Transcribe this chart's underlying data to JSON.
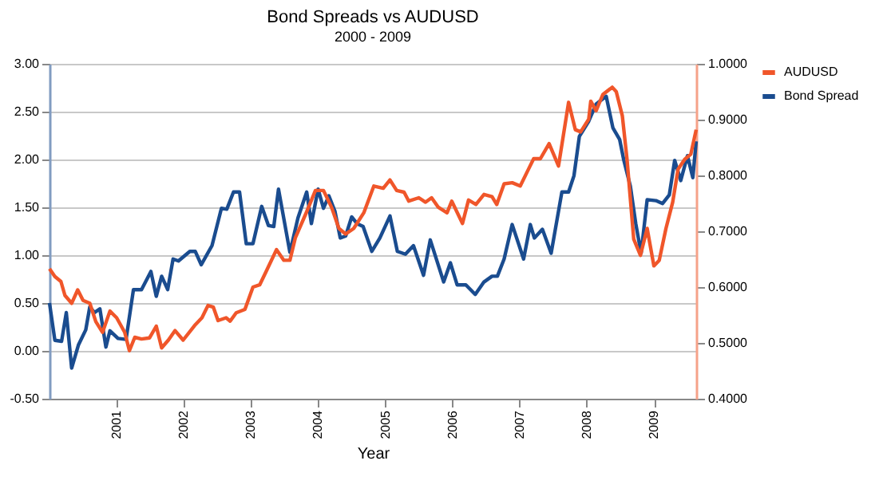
{
  "chart_data": {
    "type": "line",
    "title": "Bond Spreads vs AUDUSD",
    "subtitle": "2000 - 2009",
    "xlabel": "Year",
    "xlim": [
      2000,
      2009.63
    ],
    "xticks": [
      2001,
      2002,
      2003,
      2004,
      2005,
      2006,
      2007,
      2008,
      2009
    ],
    "ylim": [
      -0.5,
      3.0
    ],
    "yticks": [
      {
        "value": -0.5,
        "label": "-0.50"
      },
      {
        "value": 0,
        "label": "0.00"
      },
      {
        "value": 0.5,
        "label": "0.50"
      },
      {
        "value": 1,
        "label": "1.00"
      },
      {
        "value": 1.5,
        "label": "1.50"
      },
      {
        "value": 2,
        "label": "2.00"
      },
      {
        "value": 2.5,
        "label": "2.50"
      },
      {
        "value": 3,
        "label": "3.00"
      }
    ],
    "y2lim": [
      0.4,
      1.0
    ],
    "y2ticks": [
      {
        "value": 0.4,
        "label": "0.4000"
      },
      {
        "value": 0.5,
        "label": "0.5000"
      },
      {
        "value": 0.6,
        "label": "0.6000"
      },
      {
        "value": 0.7,
        "label": "0.7000"
      },
      {
        "value": 0.8,
        "label": "0.8000"
      },
      {
        "value": 0.9,
        "label": "0.9000"
      },
      {
        "value": 1.0,
        "label": "1.0000"
      }
    ],
    "grid": "y",
    "legend": "right",
    "marker": "none",
    "line_style": "solid",
    "series": [
      {
        "name": "AUDUSD",
        "color": "#f0562a",
        "axis": "y2",
        "x": [
          2000,
          2000.08,
          2000.17,
          2000.23,
          2000.33,
          2000.42,
          2000.5,
          2000.6,
          2000.69,
          2000.79,
          2000.9,
          2001,
          2001.12,
          2001.19,
          2001.27,
          2001.37,
          2001.49,
          2001.59,
          2001.67,
          2001.77,
          2001.87,
          2001.99,
          2002.16,
          2002.27,
          2002.36,
          2002.44,
          2002.51,
          2002.63,
          2002.69,
          2002.78,
          2002.91,
          2003.03,
          2003.13,
          2003.23,
          2003.38,
          2003.49,
          2003.58,
          2003.66,
          2003.83,
          2003.96,
          2004.08,
          2004.2,
          2004.31,
          2004.41,
          2004.53,
          2004.68,
          2004.83,
          2004.97,
          2005.07,
          2005.17,
          2005.28,
          2005.35,
          2005.5,
          2005.6,
          2005.69,
          2005.79,
          2005.92,
          2005.99,
          2006.15,
          2006.24,
          2006.35,
          2006.47,
          2006.59,
          2006.66,
          2006.77,
          2006.89,
          2007.01,
          2007.12,
          2007.21,
          2007.31,
          2007.44,
          2007.58,
          2007.73,
          2007.83,
          2007.91,
          2008.03,
          2008.06,
          2008.14,
          2008.24,
          2008.38,
          2008.44,
          2008.53,
          2008.6,
          2008.7,
          2008.8,
          2008.9,
          2009,
          2009.08,
          2009.18,
          2009.28,
          2009.36,
          2009.46,
          2009.55,
          2009.63
        ],
        "values": [
          0.633,
          0.619,
          0.61,
          0.585,
          0.571,
          0.595,
          0.576,
          0.571,
          0.538,
          0.519,
          0.557,
          0.545,
          0.519,
          0.486,
          0.51,
          0.507,
          0.509,
          0.53,
          0.491,
          0.505,
          0.522,
          0.505,
          0.531,
          0.545,
          0.567,
          0.564,
          0.54,
          0.545,
          0.539,
          0.554,
          0.56,
          0.6,
          0.604,
          0.629,
          0.667,
          0.648,
          0.648,
          0.688,
          0.735,
          0.773,
          0.773,
          0.743,
          0.705,
          0.695,
          0.705,
          0.733,
          0.781,
          0.777,
          0.792,
          0.773,
          0.77,
          0.754,
          0.76,
          0.752,
          0.76,
          0.743,
          0.733,
          0.754,
          0.714,
          0.756,
          0.748,
          0.766,
          0.762,
          0.748,
          0.785,
          0.787,
          0.781,
          0.808,
          0.83,
          0.83,
          0.857,
          0.817,
          0.931,
          0.882,
          0.878,
          0.901,
          0.933,
          0.916,
          0.945,
          0.958,
          0.95,
          0.907,
          0.829,
          0.686,
          0.657,
          0.705,
          0.638,
          0.648,
          0.705,
          0.752,
          0.811,
          0.829,
          0.838,
          0.882
        ]
      },
      {
        "name": "Bond Spread",
        "color": "#1a4c8f",
        "axis": "y",
        "x": [
          2000,
          2000.08,
          2000.18,
          2000.25,
          2000.33,
          2000.43,
          2000.54,
          2000.6,
          2000.67,
          2000.75,
          2000.84,
          2000.9,
          2001.02,
          2001.14,
          2001.25,
          2001.37,
          2001.51,
          2001.59,
          2001.67,
          2001.76,
          2001.84,
          2001.92,
          2002.09,
          2002.17,
          2002.26,
          2002.42,
          2002.56,
          2002.64,
          2002.74,
          2002.83,
          2002.93,
          2003.03,
          2003.16,
          2003.26,
          2003.34,
          2003.41,
          2003.58,
          2003.7,
          2003.83,
          2003.9,
          2004,
          2004.08,
          2004.16,
          2004.25,
          2004.33,
          2004.41,
          2004.5,
          2004.58,
          2004.67,
          2004.8,
          2004.92,
          2005.07,
          2005.18,
          2005.3,
          2005.42,
          2005.57,
          2005.67,
          2005.87,
          2005.97,
          2006.07,
          2006.2,
          2006.34,
          2006.47,
          2006.59,
          2006.67,
          2006.77,
          2006.89,
          2007.06,
          2007.16,
          2007.22,
          2007.34,
          2007.47,
          2007.63,
          2007.73,
          2007.81,
          2007.89,
          2008.03,
          2008.14,
          2008.29,
          2008.39,
          2008.49,
          2008.55,
          2008.65,
          2008.73,
          2008.81,
          2008.9,
          2009.03,
          2009.13,
          2009.23,
          2009.31,
          2009.4,
          2009.5,
          2009.58,
          2009.63
        ],
        "values": [
          0.5,
          0.11,
          0.1,
          0.4,
          -0.18,
          0.06,
          0.22,
          0.46,
          0.4,
          0.44,
          0.04,
          0.21,
          0.13,
          0.12,
          0.64,
          0.64,
          0.83,
          0.57,
          0.78,
          0.64,
          0.96,
          0.94,
          1.04,
          1.04,
          0.9,
          1.1,
          1.49,
          1.48,
          1.66,
          1.66,
          1.12,
          1.12,
          1.51,
          1.31,
          1.3,
          1.69,
          1.03,
          1.39,
          1.66,
          1.33,
          1.69,
          1.49,
          1.62,
          1.46,
          1.18,
          1.2,
          1.4,
          1.33,
          1.3,
          1.04,
          1.18,
          1.41,
          1.04,
          1.01,
          1.1,
          0.79,
          1.16,
          0.72,
          0.92,
          0.69,
          0.69,
          0.59,
          0.72,
          0.78,
          0.78,
          0.96,
          1.32,
          0.96,
          1.32,
          1.18,
          1.27,
          1.02,
          1.66,
          1.66,
          1.83,
          2.24,
          2.4,
          2.58,
          2.66,
          2.33,
          2.21,
          2.0,
          1.72,
          1.33,
          1.02,
          1.58,
          1.57,
          1.54,
          1.63,
          1.99,
          1.78,
          2.04,
          1.81,
          2.19
        ]
      }
    ]
  }
}
